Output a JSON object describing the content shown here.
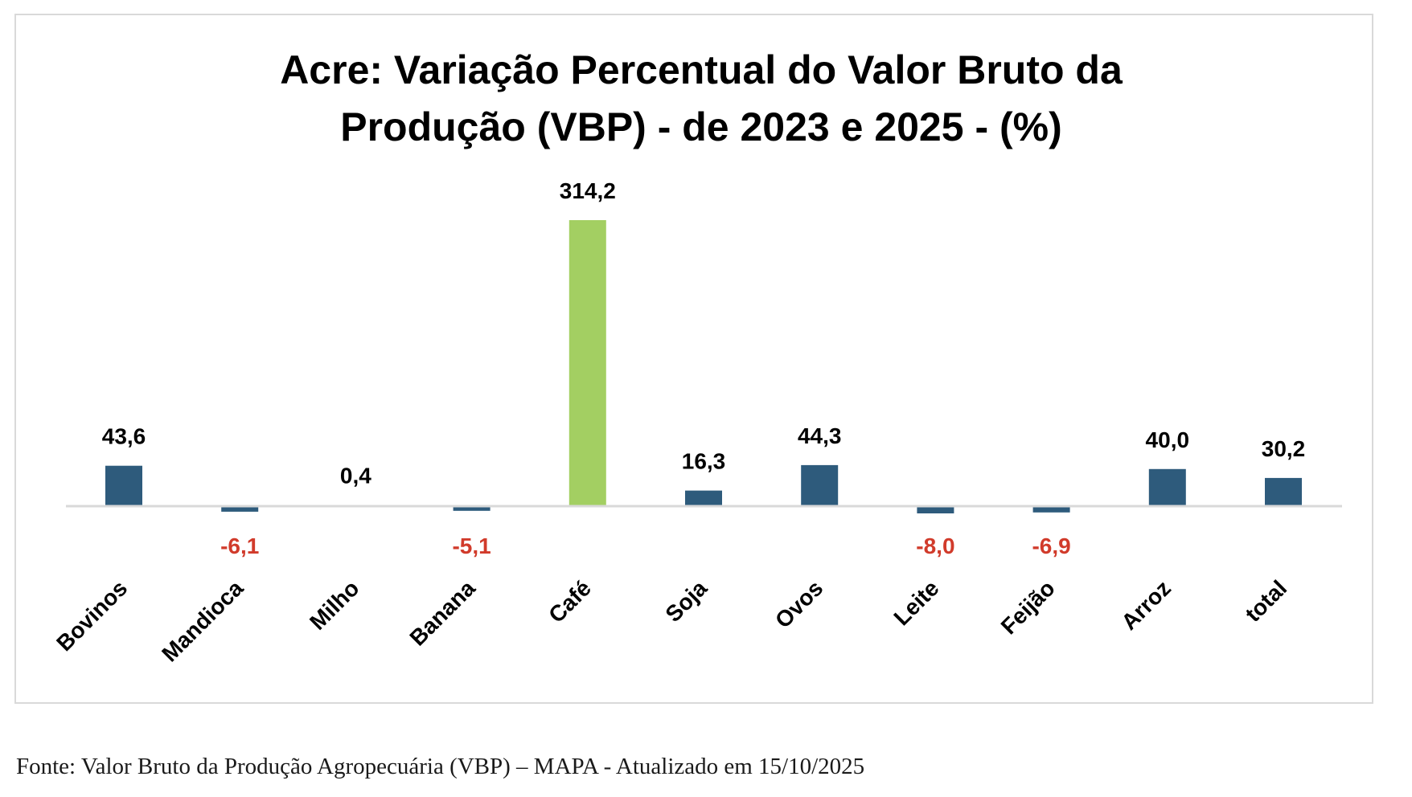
{
  "chart_data": {
    "type": "bar",
    "title": "Acre: Variação Percentual do Valor Bruto da Produção (VBP) - de 2023 e 2025 - (%)",
    "title_lines": [
      "Acre: Variação Percentual do Valor Bruto da",
      "Produção (VBP) - de 2023 e 2025 - (%)"
    ],
    "xlabel": "",
    "ylabel": "",
    "categories": [
      "Bovinos",
      "Mandioca",
      "Milho",
      "Banana",
      "Café",
      "Soja",
      "Ovos",
      "Leite",
      "Feijão",
      "Arroz",
      "total"
    ],
    "values": [
      43.6,
      -6.1,
      0.4,
      -5.1,
      314.2,
      16.3,
      44.3,
      -8.0,
      -6.9,
      40.0,
      30.2
    ],
    "data_labels": [
      "43,6",
      "-6,1",
      "0,4",
      "-5,1",
      "314,2",
      "16,3",
      "44,3",
      "-8,0",
      "-6,9",
      "40,0",
      "30,2"
    ],
    "highlight_category": "Café",
    "ylim": [
      -8.0,
      314.2
    ],
    "grid": false,
    "legend": "none",
    "y_axis_visible": false,
    "colors": {
      "bar": "#2e5b7c",
      "highlight_bar": "#a3cf62",
      "positive_label": "#000000",
      "negative_label": "#d13b2b",
      "axis_line": "#d9d9d9"
    }
  },
  "source_note": "Fonte: Valor Bruto da Produção Agropecuária (VBP) – MAPA - Atualizado em 15/10/2025"
}
